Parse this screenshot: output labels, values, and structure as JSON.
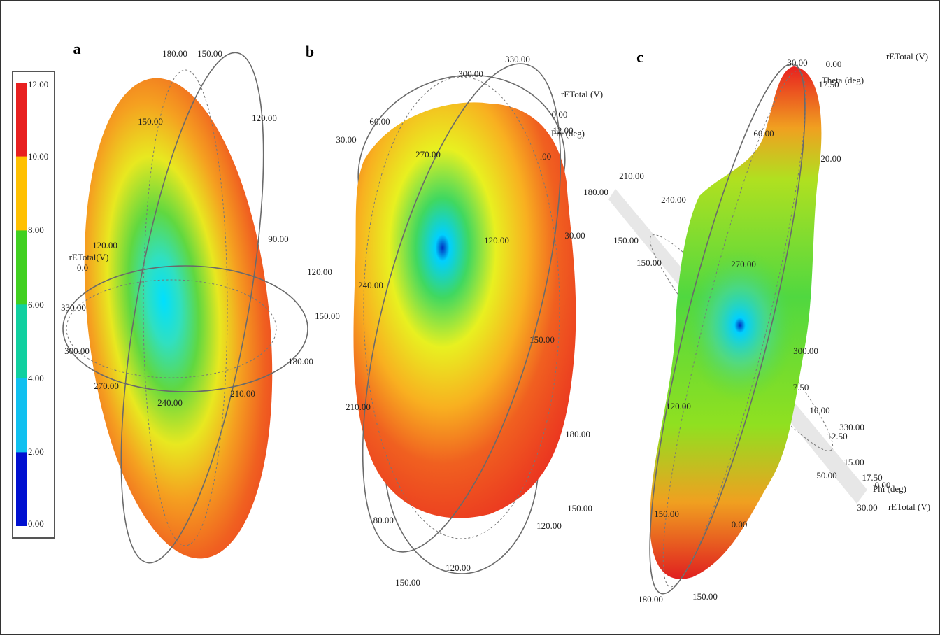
{
  "colorbar": {
    "labels": [
      "12.00",
      "10.00",
      "8.00",
      "6.00",
      "4.00",
      "2.00",
      "0.00"
    ]
  },
  "panels": [
    {
      "letter": "a",
      "labels": [
        "180.00",
        "150.00",
        "150.00",
        "120.00",
        "90.00",
        "120.00",
        "rETotal(V)",
        "0.0",
        "120.00",
        "330.00",
        "150.00",
        "300.00",
        "180.00",
        "270.00",
        "240.00",
        "210.00"
      ]
    },
    {
      "letter": "b",
      "labels": [
        "330.00",
        "300.00",
        "rETotal (V)",
        "0.00",
        "12.00",
        "Phi (deg)",
        "60.00",
        "30.00",
        "270.00",
        ".00",
        "120.00",
        "30.00",
        "240.00",
        "150.00",
        "210.00",
        "180.00",
        "150.00",
        "180.00",
        "120.00",
        "120.00",
        "150.00"
      ]
    },
    {
      "letter": "c",
      "labels": [
        "rETotal (V)",
        "30.00",
        "0.00",
        "17.50",
        "Theta (deg)",
        "60.00",
        "20.00",
        "210.00",
        "180.00",
        "240.00",
        "150.00",
        "150.00",
        "270.00",
        "300.00",
        "7.50",
        "120.00",
        "10.00",
        "330.00",
        "12.50",
        "15.00",
        "50.00",
        "17.50",
        "0.00",
        "Phi (deg)",
        "30.00",
        "rETotal (V)",
        "150.00",
        "0.00",
        "180.00",
        "150.00"
      ]
    }
  ]
}
